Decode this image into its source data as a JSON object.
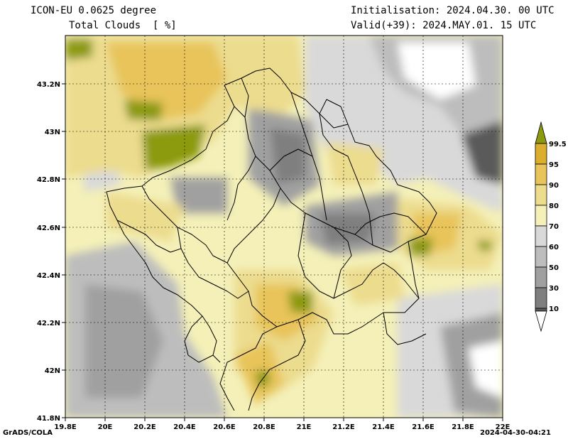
{
  "header": {
    "model": "ICON-EU 0.0625 degree",
    "variable": "Total Clouds  [ %]",
    "init": "Initialisation: 2024.04.30. 00 UTC",
    "valid": "Valid(+39): 2024.MAY.01. 15 UTC"
  },
  "axes": {
    "lon_labels": [
      "19.8E",
      "20E",
      "20.2E",
      "20.4E",
      "20.6E",
      "20.8E",
      "21E",
      "21.2E",
      "21.4E",
      "21.6E",
      "21.8E",
      "22E"
    ],
    "lat_labels": [
      "43.2N",
      "43N",
      "42.8N",
      "42.6N",
      "42.4N",
      "42.2N",
      "42N",
      "41.8N"
    ]
  },
  "legend": {
    "levels": [
      "99.5",
      "95",
      "90",
      "80",
      "70",
      "60",
      "50",
      "30",
      "10"
    ],
    "colors": [
      "#ffffff",
      "#5a5a5a",
      "#7f7f7f",
      "#a0a0a0",
      "#bdbdbd",
      "#d9d9d9",
      "#f4f0b8",
      "#ecdc8e",
      "#e8c45a",
      "#dcae2e",
      "#8c9a10"
    ]
  },
  "footer": {
    "left": "GrADS/COLA",
    "right": "2024-04-30-04:21"
  }
}
